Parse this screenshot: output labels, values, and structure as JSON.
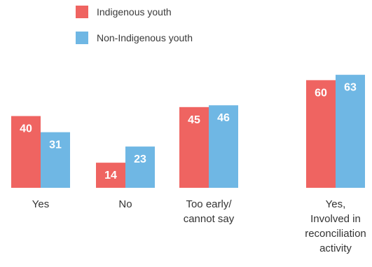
{
  "colors": {
    "indigenous": "#ef6461",
    "non_indigenous": "#6fb7e4",
    "text": "#333333"
  },
  "legend": {
    "indigenous": "Indigenous youth",
    "non_indigenous": "Non-Indigenous youth"
  },
  "chart_data": {
    "type": "bar",
    "title": "",
    "xlabel": "",
    "ylabel": "",
    "ylim": [
      0,
      70
    ],
    "grid": false,
    "legend_position": "top-left",
    "categories": [
      "Yes",
      "No",
      "Too early/ cannot say",
      "Yes, Involved in reconciliation activity"
    ],
    "category_lines": [
      [
        "Yes"
      ],
      [
        "No"
      ],
      [
        "Too early/",
        "cannot say"
      ],
      [
        "Yes,",
        "Involved in",
        "reconciliation",
        "activity"
      ]
    ],
    "series": [
      {
        "name": "Indigenous youth",
        "values": [
          40,
          14,
          45,
          60
        ]
      },
      {
        "name": "Non-Indigenous youth",
        "values": [
          31,
          23,
          46,
          63
        ]
      }
    ]
  }
}
